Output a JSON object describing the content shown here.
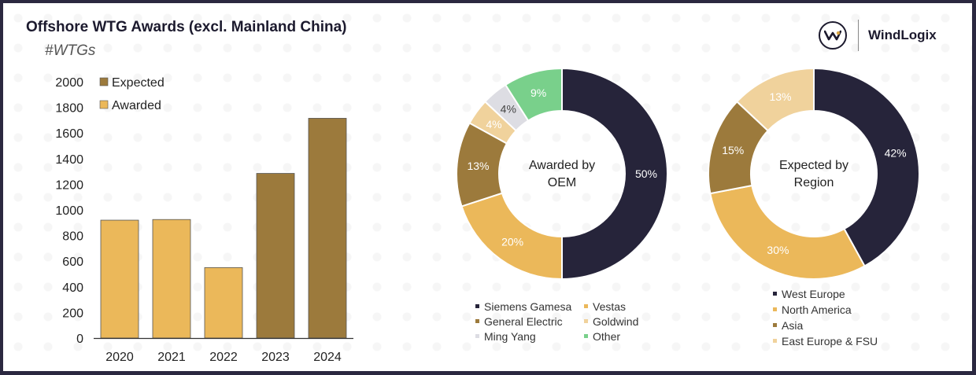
{
  "header": {
    "title": "Offshore WTG Awards (excl. Mainland China)",
    "subtitle": "#WTGs",
    "brand_name": "WindLogix"
  },
  "chart_data": [
    {
      "type": "bar",
      "categories": [
        "2020",
        "2021",
        "2022",
        "2023",
        "2024"
      ],
      "series": [
        {
          "name": "Awarded",
          "values": [
            920,
            925,
            550,
            0,
            0
          ],
          "color": "#ebb85a"
        },
        {
          "name": "Expected",
          "values": [
            0,
            0,
            0,
            1285,
            1715
          ],
          "color": "#9c7a3c"
        }
      ],
      "legend": [
        "Expected",
        "Awarded"
      ],
      "legend_placement": "top-left",
      "ylim": [
        0,
        2000
      ],
      "yticks": [
        0,
        200,
        400,
        600,
        800,
        1000,
        1200,
        1400,
        1600,
        1800,
        2000
      ],
      "ylabel": "#WTGs",
      "grid": false
    },
    {
      "type": "pie",
      "donut": true,
      "center_label_lines": [
        "Awarded by",
        "OEM"
      ],
      "slices": [
        {
          "name": "Siemens Gamesa",
          "value": 50,
          "label": "50%",
          "color": "#26243a"
        },
        {
          "name": "Vestas",
          "value": 20,
          "label": "20%",
          "color": "#ebb85a"
        },
        {
          "name": "General Electric",
          "value": 13,
          "label": "13%",
          "color": "#9c7a3c"
        },
        {
          "name": "Goldwind",
          "value": 4,
          "label": "4%",
          "color": "#f0d29c"
        },
        {
          "name": "Ming Yang",
          "value": 4,
          "label": "4%",
          "color": "#dddde3"
        },
        {
          "name": "Other",
          "value": 9,
          "label": "9%",
          "color": "#79d08b"
        }
      ],
      "legend_placement": "bottom"
    },
    {
      "type": "pie",
      "donut": true,
      "center_label_lines": [
        "Expected by",
        "Region"
      ],
      "slices": [
        {
          "name": "West Europe",
          "value": 42,
          "label": "42%",
          "color": "#26243a"
        },
        {
          "name": "North America",
          "value": 30,
          "label": "30%",
          "color": "#ebb85a"
        },
        {
          "name": "Asia",
          "value": 15,
          "label": "15%",
          "color": "#9c7a3c"
        },
        {
          "name": "East Europe & FSU",
          "value": 13,
          "label": "13%",
          "color": "#f0d29c"
        }
      ],
      "legend_placement": "bottom"
    }
  ]
}
